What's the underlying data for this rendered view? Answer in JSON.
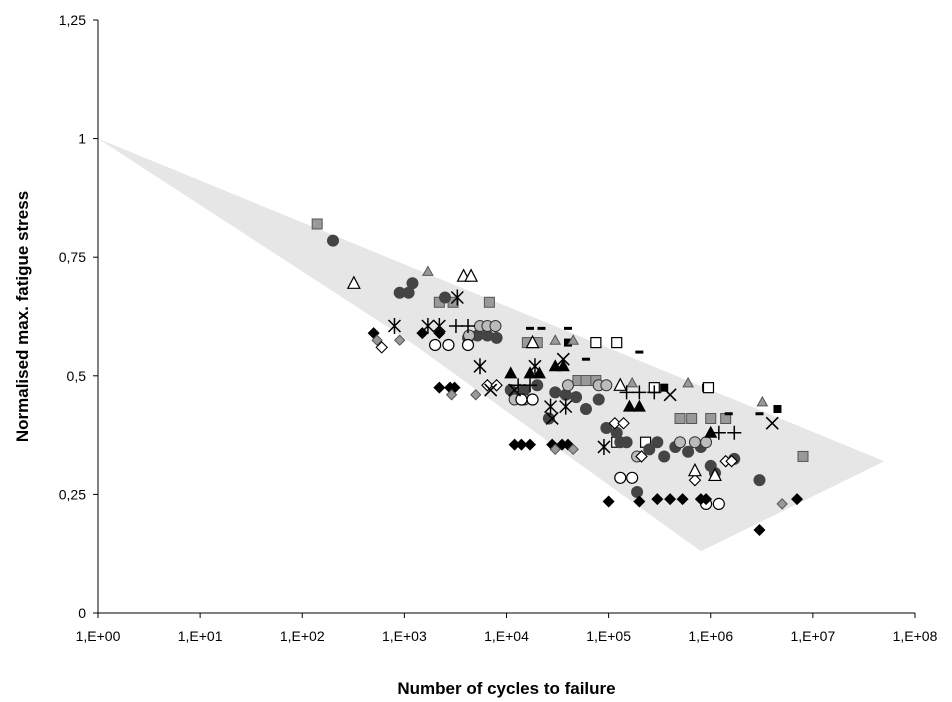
{
  "chart_data": {
    "type": "scatter",
    "title": "",
    "xlabel": "Number of cycles to failure",
    "ylabel": "Normalised max. fatigue stress",
    "x_scale": "log",
    "xlim": [
      1,
      100000000
    ],
    "ylim": [
      0,
      1.25
    ],
    "x_tick_labels": [
      "1,E+00",
      "1,E+01",
      "1,E+02",
      "1,E+03",
      "1,E+04",
      "1,E+05",
      "1,E+06",
      "1,E+07",
      "1,E+08"
    ],
    "y_tick_labels": [
      "0",
      "0,25",
      "0,5",
      "0,75",
      "1",
      "1,25"
    ],
    "grid": false,
    "legend": "none",
    "scatter_band": {
      "fill_color": "#e6e6e6",
      "outline": [
        [
          1,
          1.0
        ],
        [
          50000000,
          0.32
        ],
        [
          800000,
          0.13
        ],
        [
          1000,
          0.58
        ]
      ]
    },
    "series": [
      {
        "marker": "grey-square",
        "color": "#999999",
        "points": [
          [
            140,
            0.82
          ],
          [
            2200,
            0.655
          ],
          [
            3000,
            0.655
          ],
          [
            6800,
            0.655
          ],
          [
            16000,
            0.57
          ],
          [
            20000,
            0.57
          ],
          [
            50000,
            0.49
          ],
          [
            60000,
            0.49
          ],
          [
            75000,
            0.49
          ],
          [
            500000,
            0.41
          ],
          [
            650000,
            0.41
          ],
          [
            1000000,
            0.41
          ],
          [
            1400000,
            0.41
          ],
          [
            8000000,
            0.33
          ]
        ]
      },
      {
        "marker": "black-square",
        "color": "#000000",
        "points": [
          [
            900000,
            0.475
          ],
          [
            4500000,
            0.43
          ],
          [
            350000,
            0.475
          ],
          [
            40000,
            0.57
          ]
        ]
      },
      {
        "marker": "open-square",
        "color": "#000000",
        "points": [
          [
            75000,
            0.57
          ],
          [
            120000,
            0.57
          ],
          [
            280000,
            0.475
          ],
          [
            950000,
            0.475
          ],
          [
            230000,
            0.36
          ],
          [
            120000,
            0.36
          ]
        ]
      },
      {
        "marker": "dark-circle",
        "color": "#444444",
        "points": [
          [
            200,
            0.785
          ],
          [
            900,
            0.675
          ],
          [
            1100,
            0.675
          ],
          [
            1200,
            0.695
          ],
          [
            2500,
            0.665
          ],
          [
            4200,
            0.58
          ],
          [
            5200,
            0.585
          ],
          [
            6500,
            0.585
          ],
          [
            8000,
            0.58
          ],
          [
            11000,
            0.47
          ],
          [
            13000,
            0.455
          ],
          [
            15000,
            0.47
          ],
          [
            20000,
            0.48
          ],
          [
            26000,
            0.41
          ],
          [
            30000,
            0.465
          ],
          [
            38000,
            0.46
          ],
          [
            48000,
            0.455
          ],
          [
            60000,
            0.43
          ],
          [
            80000,
            0.45
          ],
          [
            95000,
            0.39
          ],
          [
            120000,
            0.38
          ],
          [
            150000,
            0.36
          ],
          [
            190000,
            0.255
          ],
          [
            300000,
            0.36
          ],
          [
            350000,
            0.33
          ],
          [
            450000,
            0.35
          ],
          [
            600000,
            0.34
          ],
          [
            800000,
            0.35
          ],
          [
            1000000,
            0.31
          ],
          [
            1100000,
            0.295
          ],
          [
            1700000,
            0.325
          ],
          [
            3000000,
            0.28
          ],
          [
            130000,
            0.36
          ],
          [
            250000,
            0.345
          ]
        ]
      },
      {
        "marker": "grey-circle",
        "color": "#bbbbbb",
        "points": [
          [
            4300,
            0.585
          ],
          [
            5500,
            0.605
          ],
          [
            6500,
            0.605
          ],
          [
            7800,
            0.605
          ],
          [
            12000,
            0.45
          ],
          [
            15000,
            0.45
          ],
          [
            40000,
            0.48
          ],
          [
            80000,
            0.48
          ],
          [
            95000,
            0.48
          ],
          [
            190000,
            0.33
          ],
          [
            500000,
            0.36
          ],
          [
            700000,
            0.36
          ],
          [
            900000,
            0.36
          ]
        ]
      },
      {
        "marker": "open-circle",
        "color": "#000000",
        "points": [
          [
            2000,
            0.565
          ],
          [
            2700,
            0.565
          ],
          [
            4200,
            0.565
          ],
          [
            14000,
            0.45
          ],
          [
            18000,
            0.45
          ],
          [
            130000,
            0.285
          ],
          [
            170000,
            0.285
          ],
          [
            900000,
            0.23
          ],
          [
            1200000,
            0.23
          ]
        ]
      },
      {
        "marker": "black-diamond",
        "color": "#000000",
        "points": [
          [
            500,
            0.59
          ],
          [
            1500,
            0.59
          ],
          [
            2200,
            0.59
          ],
          [
            2200,
            0.475
          ],
          [
            2800,
            0.475
          ],
          [
            3100,
            0.475
          ],
          [
            12000,
            0.355
          ],
          [
            14000,
            0.355
          ],
          [
            17000,
            0.355
          ],
          [
            28000,
            0.355
          ],
          [
            35000,
            0.355
          ],
          [
            40000,
            0.355
          ],
          [
            100000,
            0.235
          ],
          [
            200000,
            0.235
          ],
          [
            300000,
            0.24
          ],
          [
            400000,
            0.24
          ],
          [
            530000,
            0.24
          ],
          [
            800000,
            0.24
          ],
          [
            900000,
            0.24
          ],
          [
            3000000,
            0.175
          ],
          [
            7000000,
            0.24
          ]
        ]
      },
      {
        "marker": "grey-diamond",
        "color": "#999999",
        "points": [
          [
            540,
            0.575
          ],
          [
            900,
            0.575
          ],
          [
            2900,
            0.46
          ],
          [
            5000,
            0.46
          ],
          [
            30000,
            0.345
          ],
          [
            45000,
            0.345
          ],
          [
            5000000,
            0.23
          ]
        ]
      },
      {
        "marker": "open-diamond",
        "color": "#000000",
        "points": [
          [
            600,
            0.56
          ],
          [
            6500,
            0.48
          ],
          [
            8000,
            0.48
          ],
          [
            115000,
            0.4
          ],
          [
            140000,
            0.4
          ],
          [
            210000,
            0.33
          ],
          [
            1400000,
            0.32
          ],
          [
            1600000,
            0.32
          ],
          [
            700000,
            0.28
          ]
        ]
      },
      {
        "marker": "black-triangle",
        "color": "#000000",
        "points": [
          [
            11000,
            0.505
          ],
          [
            17000,
            0.505
          ],
          [
            21000,
            0.505
          ],
          [
            30000,
            0.52
          ],
          [
            36000,
            0.52
          ],
          [
            160000,
            0.435
          ],
          [
            200000,
            0.435
          ],
          [
            1000000,
            0.38
          ]
        ]
      },
      {
        "marker": "grey-triangle",
        "color": "#999999",
        "points": [
          [
            1700,
            0.72
          ],
          [
            30000,
            0.575
          ],
          [
            45000,
            0.575
          ],
          [
            600000,
            0.485
          ],
          [
            3200000,
            0.445
          ],
          [
            170000,
            0.485
          ]
        ]
      },
      {
        "marker": "open-triangle",
        "color": "#000000",
        "points": [
          [
            320,
            0.695
          ],
          [
            3800,
            0.71
          ],
          [
            4500,
            0.71
          ],
          [
            18000,
            0.57
          ],
          [
            130000,
            0.48
          ],
          [
            700000,
            0.3
          ],
          [
            1100000,
            0.29
          ]
        ]
      },
      {
        "marker": "cross",
        "color": "#000000",
        "points": [
          [
            7000,
            0.47
          ],
          [
            12000,
            0.47
          ],
          [
            36000,
            0.535
          ],
          [
            28000,
            0.41
          ],
          [
            4000000,
            0.4
          ],
          [
            400000,
            0.46
          ]
        ]
      },
      {
        "marker": "asterisk",
        "color": "#000000",
        "points": [
          [
            800,
            0.605
          ],
          [
            1700,
            0.605
          ],
          [
            2200,
            0.605
          ],
          [
            3300,
            0.665
          ],
          [
            5500,
            0.52
          ],
          [
            19000,
            0.52
          ],
          [
            27000,
            0.435
          ],
          [
            38000,
            0.435
          ],
          [
            90000,
            0.35
          ]
        ]
      },
      {
        "marker": "plus",
        "color": "#000000",
        "points": [
          [
            3200,
            0.605
          ],
          [
            4200,
            0.605
          ],
          [
            13000,
            0.48
          ],
          [
            17000,
            0.48
          ],
          [
            150000,
            0.465
          ],
          [
            200000,
            0.465
          ],
          [
            280000,
            0.465
          ],
          [
            1200000,
            0.38
          ],
          [
            1700000,
            0.38
          ]
        ]
      },
      {
        "marker": "dash",
        "color": "#000000",
        "points": [
          [
            17000,
            0.6
          ],
          [
            22000,
            0.6
          ],
          [
            40000,
            0.6
          ],
          [
            60000,
            0.535
          ],
          [
            1500000,
            0.42
          ],
          [
            3000000,
            0.42
          ],
          [
            200000,
            0.55
          ]
        ]
      }
    ]
  }
}
